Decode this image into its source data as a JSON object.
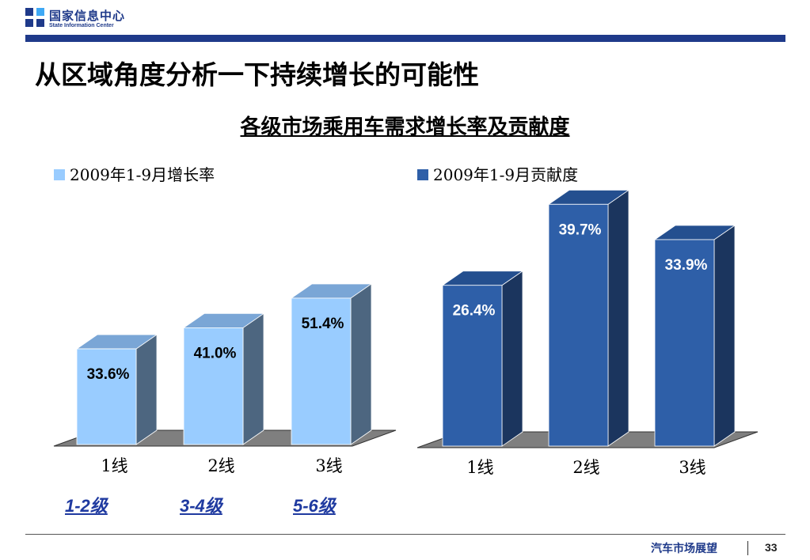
{
  "header": {
    "org_name_cn": "国家信息中心",
    "org_name_en": "State Information Center",
    "accent_color": "#1f3a8a"
  },
  "page_title": "从区域角度分析一下持续增长的可能性",
  "footer": {
    "label": "汽车市场展望",
    "page_number": "33"
  },
  "grade_labels": [
    "1-2级",
    "3-4级",
    "5-6级"
  ],
  "chart_data": [
    {
      "type": "bar",
      "title": "各级市场乘用车需求增长率及贡献度",
      "categories": [
        "1线",
        "2线",
        "3线"
      ],
      "series": [
        {
          "name": "2009年1-9月增长率",
          "values": [
            33.6,
            41.0,
            51.4
          ],
          "labels": [
            "33.6%",
            "41.0%",
            "51.4%"
          ],
          "color": "#99ccff"
        }
      ],
      "ylim": [
        0,
        60
      ],
      "grid": false,
      "legend": "top-left"
    },
    {
      "type": "bar",
      "categories": [
        "1线",
        "2线",
        "3线"
      ],
      "series": [
        {
          "name": "2009年1-9月贡献度",
          "values": [
            26.4,
            39.7,
            33.9
          ],
          "labels": [
            "26.4%",
            "39.7%",
            "33.9%"
          ],
          "color": "#2e5fa8"
        }
      ],
      "ylim": [
        0,
        45
      ],
      "grid": false,
      "legend": "top-left"
    }
  ]
}
